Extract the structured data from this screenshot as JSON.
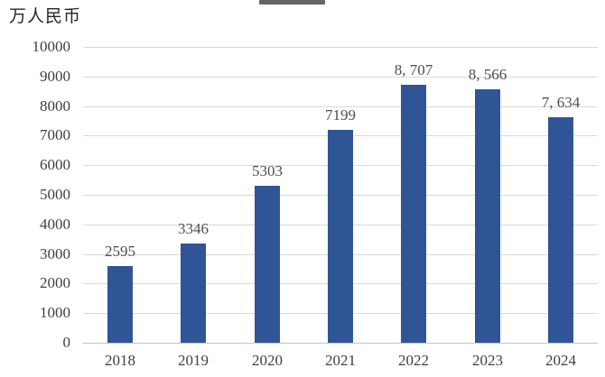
{
  "unit_label": "万人民币",
  "chart_data": {
    "type": "bar",
    "title": "",
    "ylabel": "万人民币",
    "xlabel": "",
    "categories": [
      "2018",
      "2019",
      "2020",
      "2021",
      "2022",
      "2023",
      "2024"
    ],
    "values": [
      2595,
      3346,
      5303,
      7199,
      8707,
      8566,
      7634
    ],
    "value_labels": [
      "2595",
      "3346",
      "5303",
      "7199",
      "8, 707",
      "8, 566",
      "7, 634"
    ],
    "ylim": [
      0,
      10000
    ],
    "y_tick_step": 1000,
    "y_ticks": [
      "0",
      "1000",
      "2000",
      "3000",
      "4000",
      "5000",
      "6000",
      "7000",
      "8000",
      "9000",
      "10000"
    ],
    "grid": true,
    "legend": "none",
    "colors": {
      "bar": "#2f5597",
      "gridline": "#d9d9d9",
      "zero_line": "#c3c3c3",
      "tick_text": "#3f3f3f",
      "value_text": "#4d4d4d",
      "unit_text": "#262626",
      "cropped_top_strip": "#4a4a4a"
    }
  }
}
